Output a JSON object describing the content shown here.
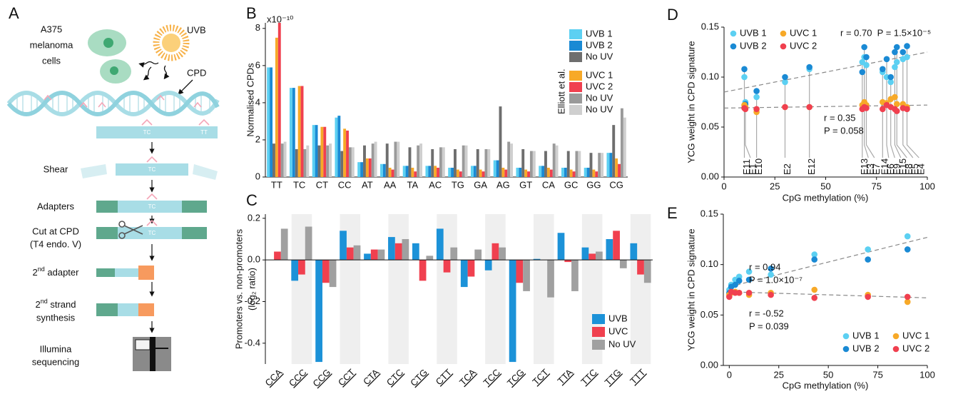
{
  "panels": [
    "A",
    "B",
    "C",
    "D",
    "E"
  ],
  "diagram": {
    "cell_line": [
      "A375",
      "melanoma",
      "cells"
    ],
    "uv": "UVB",
    "lesion": "CPD",
    "dimers": [
      "TC",
      "TT"
    ],
    "steps": [
      {
        "label": [
          "Shear"
        ],
        "dimer": "TC"
      },
      {
        "label": [
          "Adapters"
        ],
        "dimer": "TC"
      },
      {
        "label": [
          "Cut at CPD",
          "(T4 endo. V)"
        ],
        "dimer": "TC"
      },
      {
        "label": [
          {
            "text": "2",
            "sup": "nd",
            "rest": " adapter"
          }
        ]
      },
      {
        "label": [
          {
            "text": "2",
            "sup": "nd",
            "rest": " strand"
          },
          "synthesis"
        ]
      },
      {
        "label": [
          "Illumina",
          "sequencing"
        ]
      }
    ]
  },
  "chart_data": [
    {
      "type": "bar",
      "categories": [
        "TT",
        "TC",
        "CT",
        "CC",
        "AT",
        "AA",
        "TA",
        "AC",
        "TG",
        "GA",
        "AG",
        "GT",
        "CA",
        "GC",
        "GG",
        "CG"
      ],
      "y_label": "Normalised CPDs",
      "y_multiplier": "x10⁻¹⁰",
      "annotation": "Elliott et al.",
      "ylim": [
        0,
        8.3
      ],
      "yticks": [
        0,
        2,
        4,
        6,
        8
      ],
      "series": [
        {
          "name": "UVB 1",
          "color": "#5cd0f2",
          "values": [
            5.9,
            4.8,
            2.8,
            3.2,
            0.8,
            0.7,
            0.6,
            0.6,
            0.5,
            0.6,
            0.9,
            0.5,
            0.6,
            0.5,
            0.5,
            1.3
          ]
        },
        {
          "name": "UVB 2",
          "color": "#1a8ad4",
          "values": [
            5.9,
            4.8,
            2.8,
            3.3,
            0.8,
            0.7,
            0.6,
            0.6,
            0.5,
            0.6,
            0.9,
            0.5,
            0.6,
            0.5,
            0.5,
            1.3
          ]
        },
        {
          "name": "No UV",
          "color": "#6e6e6e",
          "values": [
            1.8,
            1.5,
            1.7,
            1.4,
            1.7,
            1.8,
            1.6,
            1.5,
            1.5,
            1.5,
            3.8,
            1.5,
            1.4,
            1.4,
            1.3,
            2.8
          ]
        },
        {
          "name": "UVC 1",
          "color": "#f7a928",
          "values": [
            7.5,
            4.9,
            2.7,
            2.6,
            1.0,
            0.5,
            0.5,
            0.6,
            0.4,
            0.4,
            0.5,
            0.4,
            0.5,
            0.4,
            0.4,
            1.0
          ]
        },
        {
          "name": "UVC 2",
          "color": "#f0404f",
          "values": [
            8.3,
            4.9,
            2.7,
            2.5,
            1.0,
            0.4,
            0.3,
            0.5,
            0.3,
            0.3,
            0.4,
            0.3,
            0.4,
            0.3,
            0.3,
            0.7
          ]
        },
        {
          "name": "No UV",
          "color": "#9a9a9a",
          "values": [
            1.8,
            1.5,
            1.7,
            1.6,
            1.8,
            1.9,
            1.7,
            1.6,
            1.7,
            1.5,
            1.9,
            1.4,
            1.8,
            1.4,
            1.3,
            3.7
          ]
        },
        {
          "name": "No UV",
          "color": "#cfcfcf",
          "values": [
            1.9,
            1.7,
            1.8,
            1.6,
            1.9,
            1.9,
            1.8,
            1.6,
            1.7,
            1.5,
            1.8,
            1.4,
            1.7,
            1.4,
            1.3,
            3.2
          ]
        }
      ]
    },
    {
      "type": "bar",
      "categories": [
        "CCA",
        "CCC",
        "CCG",
        "CCT",
        "CTA",
        "CTC",
        "CTG",
        "CTT",
        "TCA",
        "TCC",
        "TCG",
        "TCT",
        "TTA",
        "TTC",
        "TTG",
        "TTT"
      ],
      "y_label": [
        "Promoters vs. non-promoters",
        "(log₂ ratio)"
      ],
      "ylim": [
        -0.5,
        0.22
      ],
      "yticks": [
        -0.4,
        -0.2,
        {
          "value": 0,
          "label": "0.0"
        },
        0.2
      ],
      "series": [
        {
          "name": "UVB",
          "color": "#1c92d8",
          "values": [
            0,
            -0.1,
            -0.49,
            0.14,
            0.03,
            0.11,
            0.08,
            0.15,
            -0.13,
            -0.05,
            -0.49,
            0.005,
            0.13,
            0.06,
            0.1,
            0.08
          ]
        },
        {
          "name": "UVC",
          "color": "#f0404f",
          "values": [
            0.04,
            -0.07,
            -0.11,
            0.06,
            0.05,
            0.08,
            -0.1,
            -0.06,
            -0.08,
            0.08,
            -0.11,
            0,
            -0.01,
            0.03,
            0.14,
            -0.07
          ]
        },
        {
          "name": "No UV",
          "color": "#a0a0a0",
          "values": [
            0.15,
            0.16,
            -0.13,
            0.07,
            0.05,
            0.1,
            0.02,
            0.06,
            0.05,
            0.06,
            -0.15,
            -0.18,
            -0.15,
            0.04,
            -0.04,
            -0.11
          ]
        }
      ]
    },
    {
      "type": "scatter",
      "x_label": "CpG methylation (%)",
      "y_label": "YCG weight in CPD signature",
      "xlim": [
        0,
        100
      ],
      "xticks": [
        0,
        25,
        50,
        75,
        100
      ],
      "ylim": [
        0,
        0.15
      ],
      "yticks": [
        {
          "value": 0,
          "label": "0.00"
        },
        0.05,
        {
          "value": 0.1,
          "label": "0.10"
        },
        0.15
      ],
      "x": [
        10,
        10.5,
        16,
        30,
        42,
        68,
        69,
        70,
        78,
        80,
        82,
        84,
        85,
        88,
        90
      ],
      "point_labels": [
        "E11",
        "E1",
        "E10",
        "E2",
        "E12",
        "E13",
        "E3",
        "E7",
        "E14",
        "E6",
        "E9",
        "E15",
        "E8",
        "E5",
        "E4"
      ],
      "series": [
        {
          "name": "UVB 1",
          "color": "#5cd0f2",
          "values": [
            0.1,
            0.075,
            0.08,
            0.095,
            0.108,
            0.115,
            0.12,
            0.112,
            0.105,
            0.1,
            0.095,
            0.11,
            0.115,
            0.118,
            0.12
          ]
        },
        {
          "name": "UVB 2",
          "color": "#1a8ad4",
          "values": [
            0.108,
            0.073,
            0.086,
            0.1,
            0.11,
            0.105,
            0.13,
            0.12,
            0.108,
            0.118,
            0.1,
            0.125,
            0.13,
            0.125,
            0.131
          ]
        },
        {
          "name": "UVC 1",
          "color": "#f7a928",
          "values": [
            0.072,
            0.07,
            0.065,
            0.07,
            0.07,
            0.072,
            0.075,
            0.072,
            0.075,
            0.074,
            0.078,
            0.08,
            0.073,
            0.073,
            0.07
          ]
        },
        {
          "name": "UVC 2",
          "color": "#f0404f",
          "values": [
            0.069,
            0.068,
            0.068,
            0.07,
            0.07,
            0.068,
            0.07,
            0.069,
            0.068,
            0.072,
            0.07,
            0.068,
            0.066,
            0.069,
            0.068
          ]
        }
      ],
      "fit_lines": [
        {
          "x": [
            0,
            100
          ],
          "y": [
            0.085,
            0.125
          ]
        },
        {
          "x": [
            0,
            100
          ],
          "y": [
            0.069,
            0.072
          ]
        }
      ],
      "annotations": [
        "r = 0.70  P = 1.5×10⁻⁵",
        "r = 0.35",
        "P = 0.058"
      ]
    },
    {
      "type": "scatter",
      "x_label": "CpG methylation (%)",
      "y_label": "YCG weight in CPD signature",
      "xlim": [
        -3,
        100
      ],
      "xticks": [
        0,
        25,
        50,
        75,
        100
      ],
      "ylim": [
        0,
        0.15
      ],
      "yticks": [
        {
          "value": 0,
          "label": "0.00"
        },
        0.05,
        {
          "value": 0.1,
          "label": "0.10"
        },
        0.15
      ],
      "x": [
        0,
        1,
        3,
        5,
        10,
        21,
        43,
        70,
        90
      ],
      "series": [
        {
          "name": "UVB 1",
          "color": "#5cd0f2",
          "values": [
            0.075,
            0.08,
            0.085,
            0.088,
            0.093,
            0.09,
            0.11,
            0.115,
            0.128
          ]
        },
        {
          "name": "UVB 2",
          "color": "#1a8ad4",
          "values": [
            0.072,
            0.078,
            0.08,
            0.084,
            0.085,
            0.096,
            0.105,
            0.105,
            0.115
          ]
        },
        {
          "name": "UVC 1",
          "color": "#f7a928",
          "values": [
            0.07,
            0.072,
            0.073,
            0.072,
            0.07,
            0.072,
            0.075,
            0.07,
            0.063
          ]
        },
        {
          "name": "UVC 2",
          "color": "#f0404f",
          "values": [
            0.068,
            0.073,
            0.072,
            0.072,
            0.072,
            0.07,
            0.067,
            0.068,
            0.068
          ]
        }
      ],
      "fit_lines": [
        {
          "x": [
            0,
            100
          ],
          "y": [
            0.078,
            0.127
          ]
        },
        {
          "x": [
            0,
            100
          ],
          "y": [
            0.073,
            0.067
          ]
        }
      ],
      "annotations": [
        "r = 0.94",
        "P = 1.0×10⁻⁷",
        "r = -0.52",
        "P = 0.039"
      ]
    }
  ]
}
